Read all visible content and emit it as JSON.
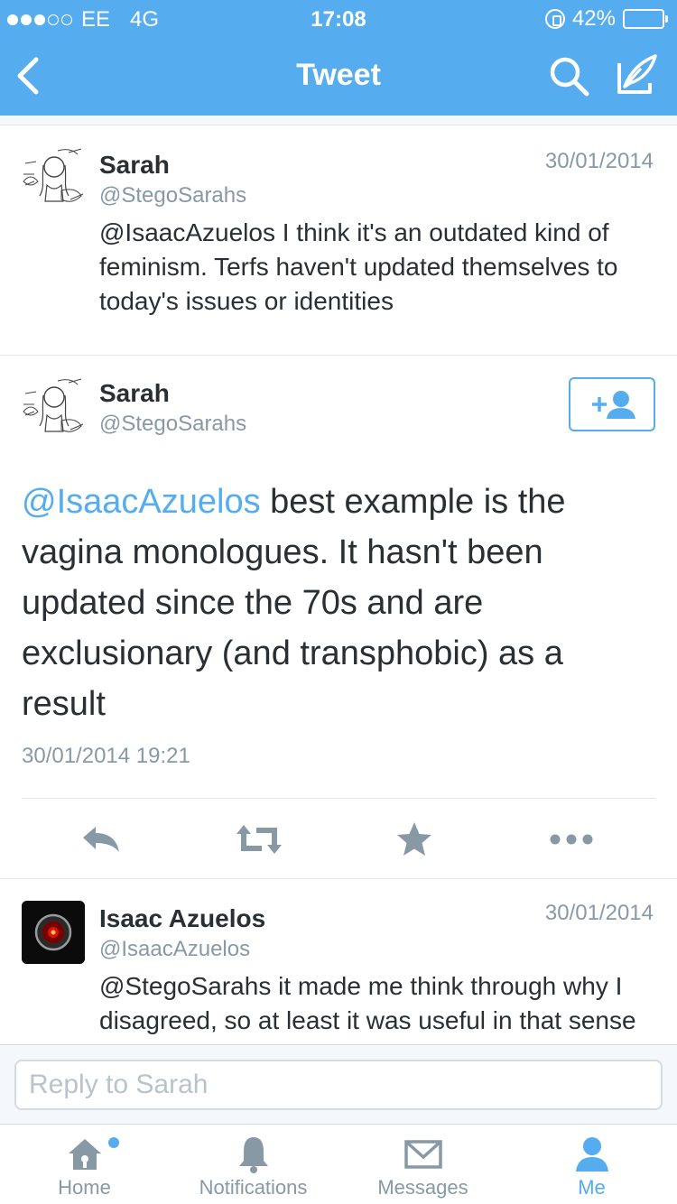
{
  "status": {
    "carrier": "EE",
    "network": "4G",
    "time": "17:08",
    "battery": "42%",
    "battery_level": 0.42
  },
  "nav": {
    "title": "Tweet"
  },
  "tweets_before": [
    {
      "name": "Sarah",
      "handle": "@StegoSarahs",
      "date": "30/01/2014",
      "text": "@IsaacAzuelos I think it's an outdated kind of feminism. Terfs haven't updated themselves to today's issues or identities"
    }
  ],
  "main_tweet": {
    "name": "Sarah",
    "handle": "@StegoSarahs",
    "mention": "@IsaacAzuelos",
    "text": " best example is the vagina monologues. It hasn't been updated since the 70s and are exclusionary (and transphobic) as a result",
    "timestamp": "30/01/2014 19:21"
  },
  "tweets_after": [
    {
      "name": "Isaac Azuelos",
      "handle": "@IsaacAzuelos",
      "date": "30/01/2014",
      "text": "@StegoSarahs it made me think through why I disagreed, so at least it was useful in that sense"
    }
  ],
  "reply": {
    "placeholder": "Reply to Sarah"
  },
  "tabs": [
    {
      "label": "Home",
      "icon": "home-icon"
    },
    {
      "label": "Notifications",
      "icon": "bell-icon"
    },
    {
      "label": "Messages",
      "icon": "envelope-icon"
    },
    {
      "label": "Me",
      "icon": "person-icon"
    }
  ],
  "colors": {
    "brand": "#55acee",
    "muted": "#8899a6",
    "text": "#292f33"
  }
}
